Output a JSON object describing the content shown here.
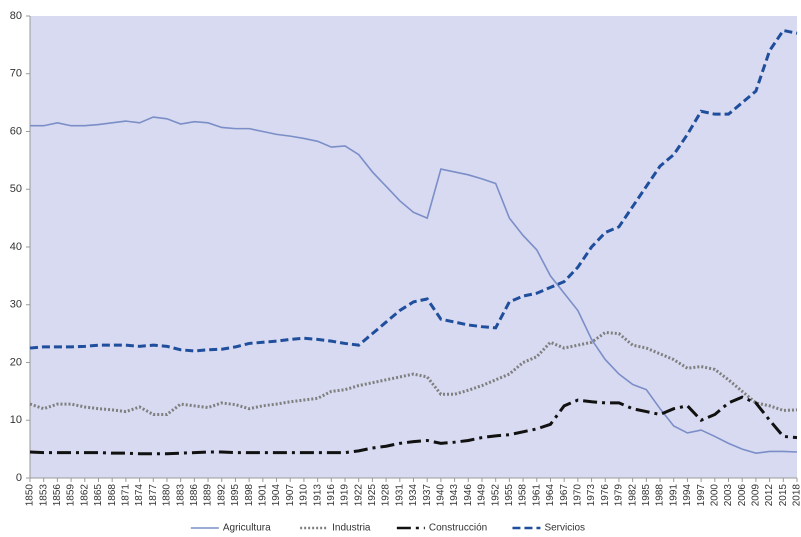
{
  "chart_data": {
    "type": "line",
    "x": [
      1850,
      1853,
      1856,
      1859,
      1862,
      1865,
      1868,
      1871,
      1874,
      1877,
      1880,
      1883,
      1886,
      1889,
      1892,
      1895,
      1898,
      1901,
      1904,
      1907,
      1910,
      1913,
      1916,
      1919,
      1922,
      1925,
      1928,
      1931,
      1934,
      1937,
      1940,
      1943,
      1946,
      1949,
      1952,
      1955,
      1958,
      1961,
      1964,
      1967,
      1970,
      1973,
      1976,
      1979,
      1982,
      1985,
      1988,
      1991,
      1994,
      1997,
      2000,
      2003,
      2006,
      2009,
      2012,
      2015,
      2018
    ],
    "xlim": [
      1850,
      2018
    ],
    "ylim": [
      0,
      80
    ],
    "yticks": [
      0,
      10,
      20,
      30,
      40,
      50,
      60,
      70,
      80
    ],
    "background": "#d7daf0",
    "series": [
      {
        "name": "Agricultura",
        "color": "#7b8ec8",
        "style": "solid",
        "values": [
          61,
          61,
          61.5,
          61,
          61,
          61.2,
          61.5,
          61.8,
          61.5,
          62.5,
          62.2,
          61.3,
          61.7,
          61.5,
          60.7,
          60.5,
          60.5,
          60,
          59.5,
          59.2,
          58.8,
          58.3,
          57.3,
          57.5,
          56,
          53,
          50.5,
          48,
          46,
          45,
          53.5,
          53,
          52.5,
          51.8,
          51,
          45,
          42,
          39.5,
          35,
          32,
          29,
          24,
          20.5,
          18,
          16.2,
          15.3,
          12,
          9,
          7.8,
          8.3,
          7.2,
          6,
          5,
          4.3,
          4.6,
          4.6,
          4.5
        ]
      },
      {
        "name": "Industria",
        "color": "#7f7f7f",
        "style": "dotted",
        "values": [
          12.8,
          12,
          12.8,
          12.8,
          12.3,
          12,
          11.8,
          11.5,
          12.3,
          11,
          11,
          12.8,
          12.5,
          12.2,
          13,
          12.7,
          12,
          12.5,
          12.8,
          13.2,
          13.5,
          13.8,
          15,
          15.3,
          16,
          16.5,
          17,
          17.5,
          18,
          17.5,
          14.5,
          14.5,
          15.2,
          16,
          17,
          18,
          20,
          21,
          23.5,
          22.5,
          23,
          23.5,
          25.2,
          25,
          23,
          22.5,
          21.5,
          20.5,
          19,
          19.3,
          18.8,
          17,
          15,
          13,
          12.5,
          11.7,
          11.8
        ]
      },
      {
        "name": "Construcción",
        "color": "#111111",
        "style": "dashdot",
        "values": [
          4.5,
          4.4,
          4.4,
          4.4,
          4.4,
          4.4,
          4.3,
          4.3,
          4.2,
          4.2,
          4.2,
          4.3,
          4.4,
          4.5,
          4.5,
          4.4,
          4.4,
          4.4,
          4.4,
          4.4,
          4.4,
          4.4,
          4.4,
          4.4,
          4.7,
          5.2,
          5.5,
          6,
          6.3,
          6.5,
          6,
          6.2,
          6.5,
          7,
          7.3,
          7.5,
          8,
          8.5,
          9.3,
          12.5,
          13.5,
          13.2,
          13,
          13,
          12,
          11.5,
          11,
          12,
          12.5,
          10,
          11,
          13,
          14,
          13,
          10,
          7.2,
          7
        ]
      },
      {
        "name": "Servicios",
        "color": "#1f4e9c",
        "style": "dashed",
        "values": [
          22.5,
          22.7,
          22.7,
          22.7,
          22.8,
          23,
          23,
          23,
          22.8,
          23,
          22.8,
          22.2,
          22,
          22.2,
          22.3,
          22.7,
          23.3,
          23.5,
          23.7,
          24,
          24.2,
          24,
          23.7,
          23.3,
          23,
          25,
          27,
          29,
          30.5,
          31,
          27.5,
          27,
          26.5,
          26.2,
          26,
          30.5,
          31.5,
          32,
          33,
          34,
          36.5,
          40,
          42.5,
          43.5,
          47,
          50.5,
          54,
          56,
          59.5,
          63.5,
          63,
          63,
          65,
          67,
          74,
          77.5,
          77
        ]
      }
    ]
  }
}
